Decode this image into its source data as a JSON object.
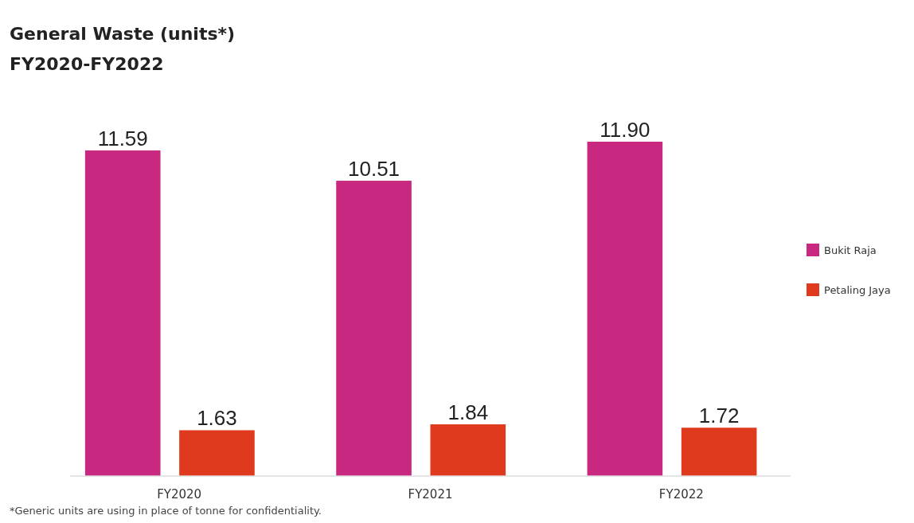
{
  "chart_data": {
    "type": "bar",
    "title": "General Waste (units*)",
    "subtitle": "FY2020-FY2022",
    "categories": [
      "FY2020",
      "FY2021",
      "FY2022"
    ],
    "series": [
      {
        "name": "Bukit Raja",
        "color": "#c8287f",
        "values": [
          11.59,
          10.51,
          11.9
        ],
        "value_labels": [
          "11.59",
          "10.51",
          "11.90"
        ]
      },
      {
        "name": "Petaling Jaya",
        "color": "#e03a1e",
        "values": [
          1.63,
          1.84,
          1.72
        ],
        "value_labels": [
          "1.63",
          "1.84",
          "1.72"
        ]
      }
    ],
    "legend": "right",
    "annotations": [
      "*Generic units are using in place of tonne for confidentiality."
    ]
  }
}
